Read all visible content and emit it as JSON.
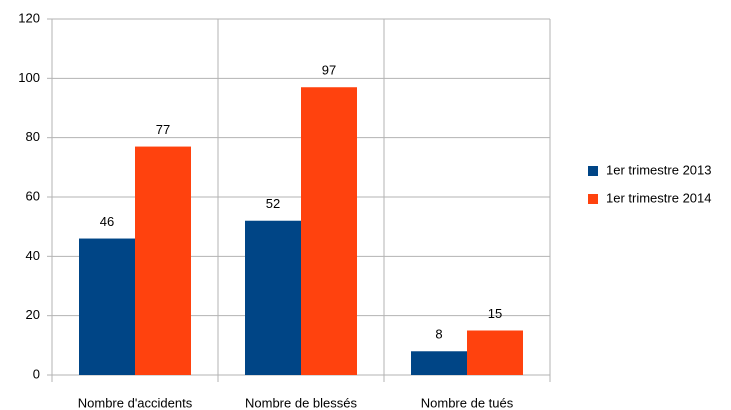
{
  "chart_data": {
    "type": "bar",
    "categories": [
      "Nombre d'accidents",
      "Nombre de blessés",
      "Nombre de tués"
    ],
    "series": [
      {
        "name": "1er trimestre 2013",
        "color": "#004586",
        "values": [
          46,
          52,
          8
        ]
      },
      {
        "name": "1er trimestre 2014",
        "color": "#ff420e",
        "values": [
          77,
          97,
          15
        ]
      }
    ],
    "ylim": [
      0,
      120
    ],
    "yticks": [
      0,
      20,
      40,
      60,
      80,
      100,
      120
    ],
    "grid": true,
    "legend": "right"
  }
}
